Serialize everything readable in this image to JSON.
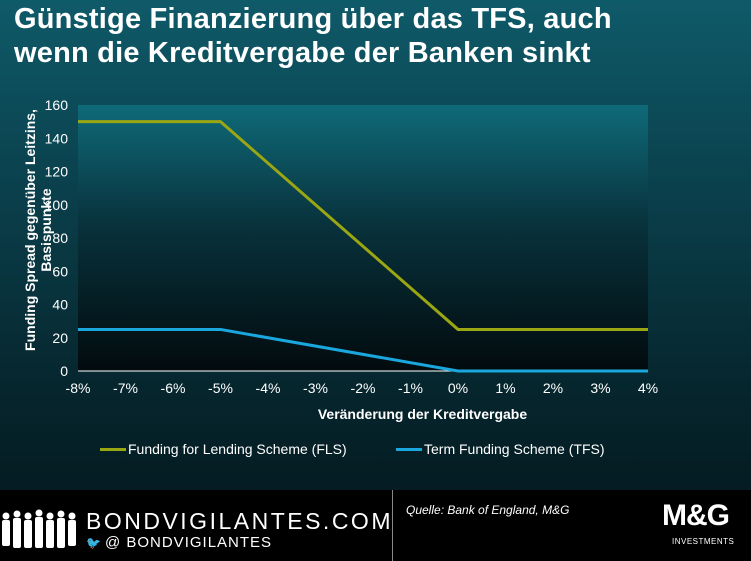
{
  "title_line1": "Günstige Finanzierung über das TFS, auch",
  "title_line2": "wenn die Kreditvergabe der Banken sinkt",
  "chart_data": {
    "type": "line",
    "title": "Günstige Finanzierung über das TFS, auch wenn die Kreditvergabe der Banken sinkt",
    "xlabel": "Veränderung der Kreditvergabe",
    "ylabel": "Funding Spread gegenüber Leitzins, Basispunkte",
    "x": [
      -8,
      -7,
      -6,
      -5,
      -4,
      -3,
      -2,
      -1,
      0,
      1,
      2,
      3,
      4
    ],
    "x_tick_labels": [
      "-8%",
      "-7%",
      "-6%",
      "-5%",
      "-4%",
      "-3%",
      "-2%",
      "-1%",
      "0%",
      "1%",
      "2%",
      "3%",
      "4%"
    ],
    "y_ticks": [
      0,
      20,
      40,
      60,
      80,
      100,
      120,
      140,
      160
    ],
    "xlim": [
      -8,
      4
    ],
    "ylim": [
      0,
      160
    ],
    "grid": false,
    "legend_position": "bottom",
    "series": [
      {
        "name": "Funding for Lending Scheme (FLS)",
        "color": "#9aa712",
        "points": [
          [
            -8,
            150
          ],
          [
            -5,
            150
          ],
          [
            0,
            25
          ],
          [
            4,
            25
          ]
        ]
      },
      {
        "name": "Term Funding Scheme (TFS)",
        "color": "#1aa7dd",
        "points": [
          [
            -8,
            25
          ],
          [
            -5,
            25
          ],
          [
            0,
            0
          ],
          [
            4,
            0
          ]
        ]
      }
    ]
  },
  "footer": {
    "brand": "BONDVIGILANTES.COM",
    "handle": "@ BONDVIGILANTES",
    "source": "Quelle: Bank of England, M&G",
    "logo_main": "M&G",
    "logo_sub": "INVESTMENTS"
  },
  "icons": [
    "people-silhouette-icon",
    "twitter-icon"
  ]
}
